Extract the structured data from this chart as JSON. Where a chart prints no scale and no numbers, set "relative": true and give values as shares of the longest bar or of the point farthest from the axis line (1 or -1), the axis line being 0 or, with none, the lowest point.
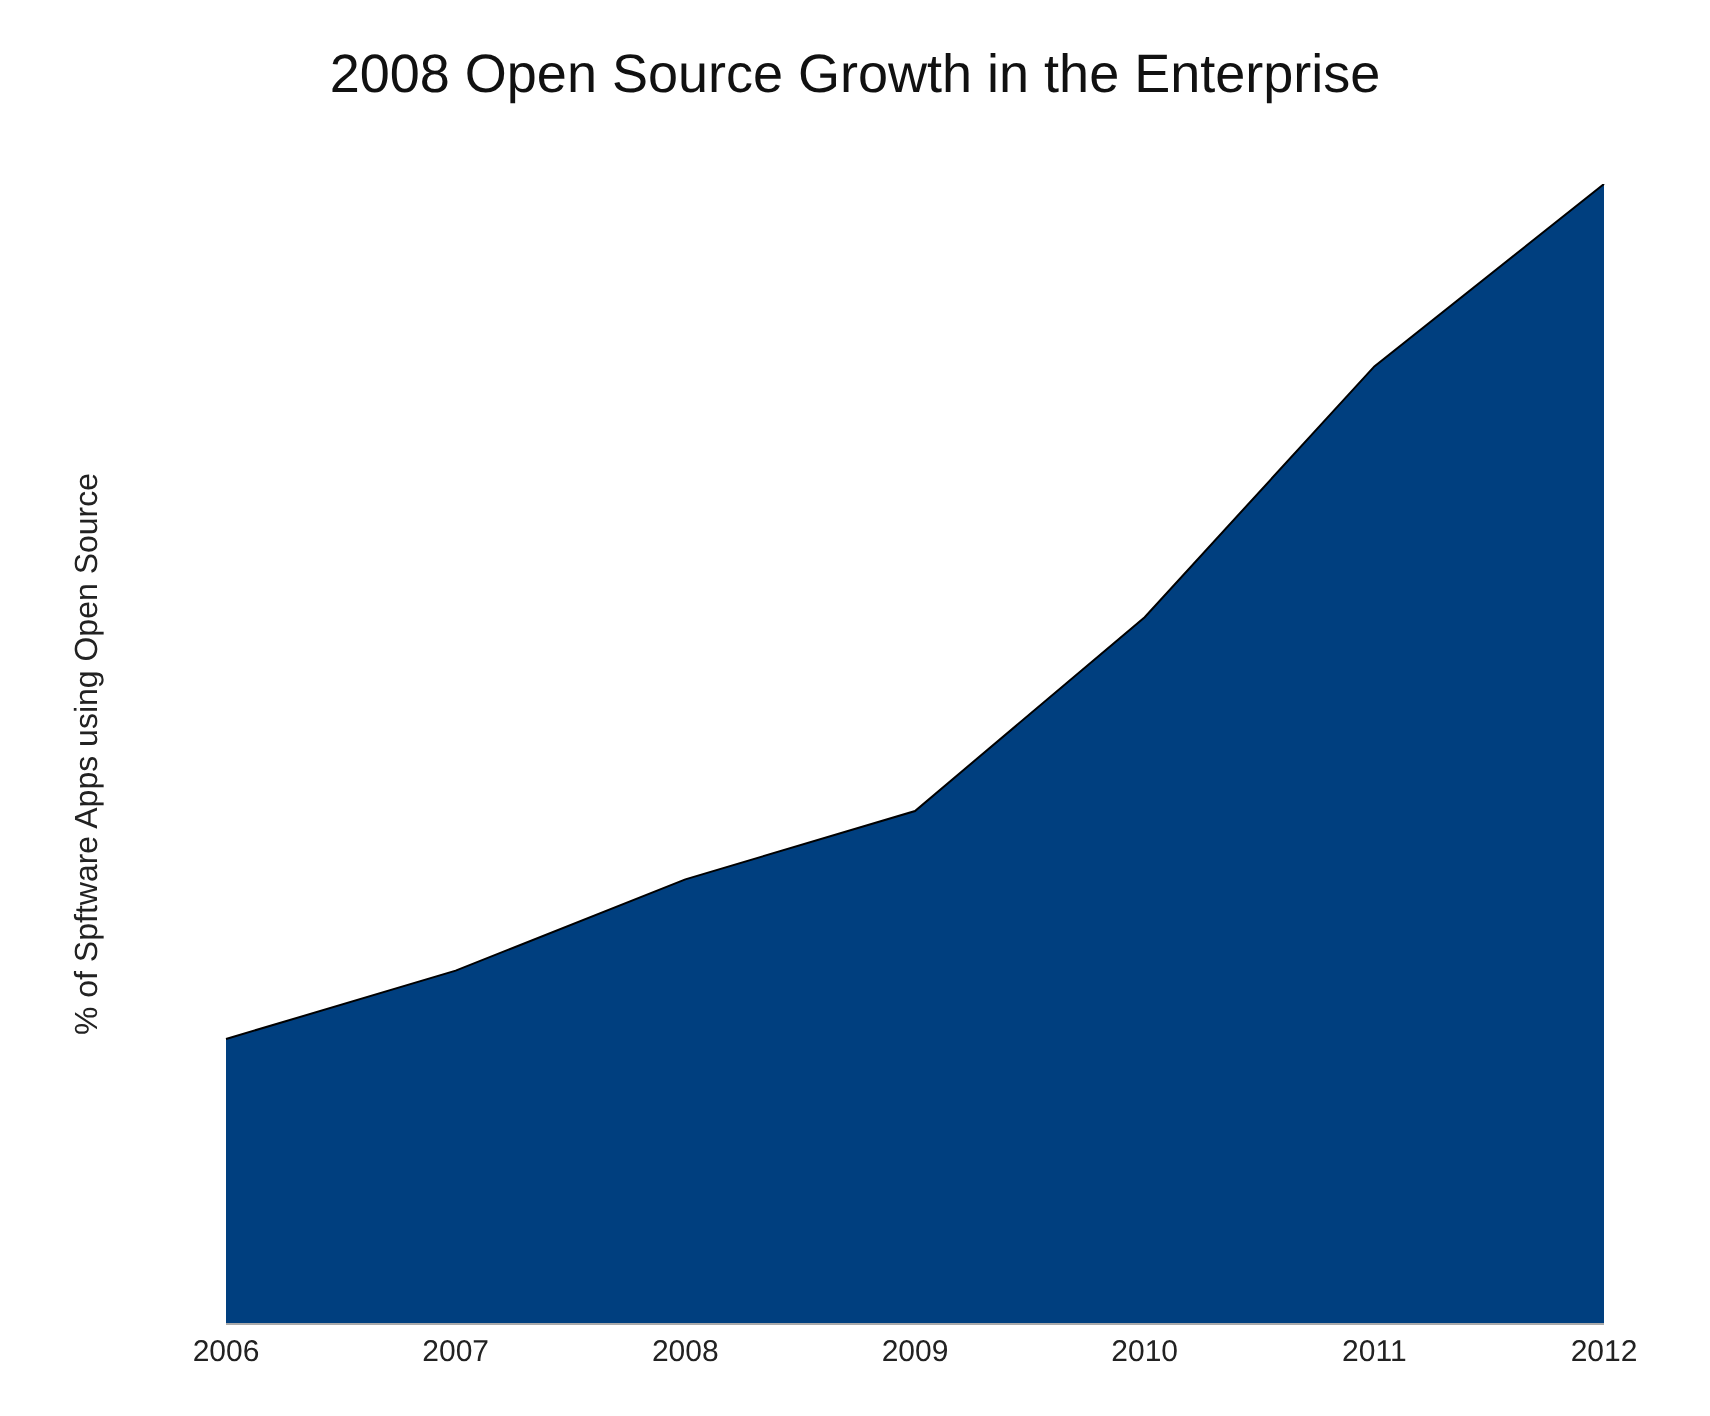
{
  "chart_data": {
    "type": "area",
    "title": "2008 Open Source Growth in the Enterprise",
    "ylabel": "% of Spftware Apps using Open Source",
    "categories": [
      "2006",
      "2007",
      "2008",
      "2009",
      "2010",
      "2011",
      "2012"
    ],
    "relative": true,
    "series": [
      {
        "color": "#003f7f",
        "values": [
          0.25,
          0.31,
          0.39,
          0.45,
          0.62,
          0.84,
          1
        ]
      }
    ]
  }
}
